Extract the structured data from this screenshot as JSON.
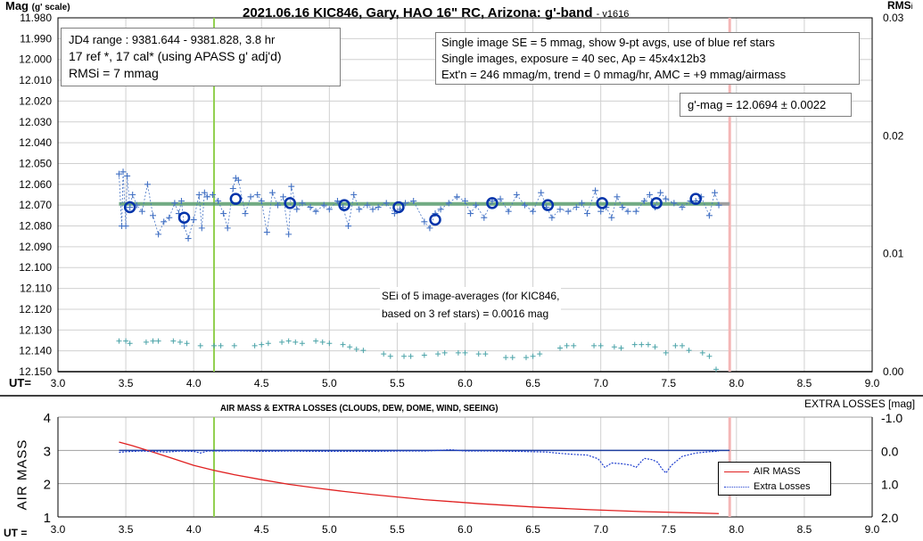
{
  "chart_data": [
    {
      "type": "scatter",
      "title": "2021.06.16 KIC846, Gary, HAO 16\" RC, Arizona: g'-band",
      "version": "- v1616",
      "ylabel": "Mag",
      "ylabel_sub": "(g' scale)",
      "y2label": "RMS",
      "y2label_sub": "i",
      "xlabel": "UT=",
      "xlim": [
        3.0,
        9.0
      ],
      "ylim": [
        12.15,
        11.98
      ],
      "y2lim": [
        0.0,
        0.03
      ],
      "xticks": [
        "3.0",
        "3.5",
        "4.0",
        "4.5",
        "5.0",
        "5.5",
        "6.0",
        "6.5",
        "7.0",
        "7.5",
        "8.0",
        "8.5",
        "9.0"
      ],
      "yticks": [
        "11.980",
        "11.990",
        "12.000",
        "12.010",
        "12.020",
        "12.030",
        "12.040",
        "12.050",
        "12.060",
        "12.070",
        "12.080",
        "12.090",
        "12.100",
        "12.110",
        "12.120",
        "12.130",
        "12.140",
        "12.150"
      ],
      "y2ticks": [
        "0.00",
        "0.01",
        "0.02",
        "0.03"
      ],
      "grid": true,
      "annotations": {
        "box1": [
          "JD4 range : 9381.644 - 9381.828,  3.8  hr",
          "17 ref *, 17 cal* (using APASS g' adj'd)",
          "RMSi = 7 mmag"
        ],
        "box2": [
          "Single image SE = 5 mmag, show  9-pt avgs, use of blue ref stars",
          "Single images, exposure = 40 sec, Ap = 45x4x12b3",
          "Ext'n = 246 mmag/m, trend =  0 mmag/hr, AMC = +9 mmag/airmass"
        ],
        "box3": "g'-mag = 12.0694 ± 0.0022",
        "box4": [
          "SEi of 5 image-averages (for KIC846,",
          "based on 3 ref stars) = 0.0016 mag"
        ]
      },
      "fit_mag": 12.0694,
      "vlines": {
        "green": 4.15,
        "pink": 7.95
      },
      "colors": {
        "points": "#4472c4",
        "avg": "#0033aa",
        "fit": "#5a9e6f",
        "rms": "#4aa3a8",
        "green": "#92d050",
        "pink": "#f4b6b6"
      },
      "series": [
        {
          "name": "Single images",
          "x": [
            3.45,
            3.47,
            3.48,
            3.5,
            3.51,
            3.53,
            3.55,
            3.58,
            3.62,
            3.66,
            3.7,
            3.74,
            3.78,
            3.82,
            3.86,
            3.89,
            3.91,
            3.93,
            3.96,
            4.0,
            4.04,
            4.06,
            4.08,
            4.1,
            4.14,
            4.18,
            4.22,
            4.25,
            4.29,
            4.31,
            4.33,
            4.38,
            4.42,
            4.47,
            4.5,
            4.54,
            4.58,
            4.62,
            4.66,
            4.7,
            4.72,
            4.76,
            4.8,
            4.86,
            4.9,
            4.96,
            5.0,
            5.06,
            5.1,
            5.14,
            5.18,
            5.22,
            5.28,
            5.32,
            5.36,
            5.42,
            5.48,
            5.52,
            5.56,
            5.62,
            5.7,
            5.74,
            5.78,
            5.82,
            5.88,
            5.94,
            6.0,
            6.04,
            6.08,
            6.14,
            6.2,
            6.26,
            6.32,
            6.38,
            6.44,
            6.5,
            6.56,
            6.6,
            6.64,
            6.7,
            6.76,
            6.82,
            6.86,
            6.9,
            6.96,
            7.0,
            7.04,
            7.08,
            7.12,
            7.16,
            7.2,
            7.26,
            7.32,
            7.36,
            7.4,
            7.44,
            7.48,
            7.54,
            7.6,
            7.66,
            7.7,
            7.74,
            7.8,
            7.84,
            7.87
          ],
          "y": [
            12.055,
            12.08,
            12.054,
            12.08,
            12.056,
            12.071,
            12.065,
            12.07,
            12.073,
            12.06,
            12.075,
            12.084,
            12.078,
            12.076,
            12.069,
            12.074,
            12.068,
            12.08,
            12.086,
            12.077,
            12.065,
            12.081,
            12.064,
            12.066,
            12.065,
            12.068,
            12.074,
            12.081,
            12.062,
            12.057,
            12.058,
            12.074,
            12.066,
            12.065,
            12.068,
            12.083,
            12.064,
            12.07,
            12.066,
            12.084,
            12.061,
            12.072,
            12.069,
            12.071,
            12.073,
            12.07,
            12.072,
            12.068,
            12.071,
            12.08,
            12.065,
            12.072,
            12.07,
            12.072,
            12.071,
            12.069,
            12.074,
            12.072,
            12.069,
            12.068,
            12.078,
            12.081,
            12.074,
            12.072,
            12.069,
            12.066,
            12.068,
            12.074,
            12.07,
            12.076,
            12.068,
            12.067,
            12.073,
            12.065,
            12.07,
            12.073,
            12.064,
            12.071,
            12.076,
            12.072,
            12.073,
            12.071,
            12.069,
            12.074,
            12.063,
            12.073,
            12.071,
            12.076,
            12.066,
            12.071,
            12.073,
            12.073,
            12.068,
            12.065,
            12.071,
            12.064,
            12.067,
            12.069,
            12.071,
            12.068,
            12.068,
            12.066,
            12.075,
            12.064,
            12.07
          ]
        },
        {
          "name": "9-pt averages",
          "x": [
            3.53,
            3.93,
            4.31,
            4.71,
            5.11,
            5.51,
            5.78,
            6.2,
            6.61,
            7.01,
            7.41,
            7.7
          ],
          "y": [
            12.071,
            12.076,
            12.067,
            12.069,
            12.07,
            12.071,
            12.077,
            12.069,
            12.07,
            12.069,
            12.069,
            12.067
          ]
        },
        {
          "name": "RMSi",
          "x": [
            3.45,
            3.5,
            3.53,
            3.65,
            3.7,
            3.74,
            3.85,
            3.9,
            3.95,
            4.05,
            4.15,
            4.2,
            4.3,
            4.45,
            4.5,
            4.55,
            4.65,
            4.7,
            4.75,
            4.8,
            4.9,
            4.95,
            5.0,
            5.1,
            5.15,
            5.2,
            5.25,
            5.4,
            5.45,
            5.55,
            5.6,
            5.7,
            5.8,
            5.85,
            5.95,
            6.0,
            6.1,
            6.15,
            6.3,
            6.35,
            6.45,
            6.5,
            6.55,
            6.7,
            6.75,
            6.8,
            6.95,
            7.0,
            7.1,
            7.15,
            7.25,
            7.3,
            7.35,
            7.4,
            7.48,
            7.55,
            7.6,
            7.65,
            7.75,
            7.8,
            7.85
          ],
          "y": [
            0.0026,
            0.0026,
            0.0024,
            0.0025,
            0.0026,
            0.0026,
            0.0026,
            0.0025,
            0.0024,
            0.0022,
            0.0022,
            0.0022,
            0.0022,
            0.0022,
            0.0023,
            0.0024,
            0.0025,
            0.0026,
            0.0025,
            0.0024,
            0.0026,
            0.0025,
            0.0024,
            0.0023,
            0.0021,
            0.0019,
            0.0018,
            0.0015,
            0.0013,
            0.0013,
            0.0013,
            0.0014,
            0.0015,
            0.0016,
            0.0016,
            0.0016,
            0.0015,
            0.0015,
            0.0012,
            0.0012,
            0.0012,
            0.0013,
            0.0015,
            0.002,
            0.0022,
            0.0022,
            0.0022,
            0.0022,
            0.0021,
            0.002,
            0.0023,
            0.0023,
            0.0023,
            0.0021,
            0.0016,
            0.0022,
            0.0022,
            0.0018,
            0.0016,
            0.0013,
            0.0002
          ]
        }
      ]
    },
    {
      "type": "line",
      "title": "AIR MASS & EXTRA LOSSES (CLOUDS, DEW, DOME, WIND, SEEING)",
      "ylabel": "AIR MASS",
      "y2label": "EXTRA LOSSES [mag]",
      "xlabel": "UT =",
      "xlim": [
        3.0,
        9.0
      ],
      "ylim": [
        1,
        4
      ],
      "y2lim": [
        -1.0,
        2.0
      ],
      "xticks": [
        "3.0",
        "3.5",
        "4.0",
        "4.5",
        "5.0",
        "5.5",
        "6.0",
        "6.5",
        "7.0",
        "7.5",
        "8.0",
        "8.5",
        "9.0"
      ],
      "yticks": [
        "1",
        "2",
        "3",
        "4"
      ],
      "y2ticks": [
        "-1.0",
        "0.0",
        "1.0",
        "2.0"
      ],
      "legend": [
        "AIR MASS",
        "Extra Losses"
      ],
      "legend_position": "right",
      "series": [
        {
          "name": "AIR MASS",
          "color": "#e02020",
          "x": [
            3.45,
            3.55,
            3.7,
            3.85,
            4.0,
            4.15,
            4.3,
            4.5,
            4.7,
            4.9,
            5.1,
            5.3,
            5.5,
            5.7,
            5.9,
            6.1,
            6.3,
            6.5,
            6.7,
            6.9,
            7.1,
            7.3,
            7.5,
            7.7,
            7.87
          ],
          "y": [
            3.25,
            3.14,
            2.95,
            2.75,
            2.55,
            2.4,
            2.27,
            2.12,
            1.98,
            1.87,
            1.77,
            1.68,
            1.6,
            1.52,
            1.46,
            1.4,
            1.35,
            1.3,
            1.26,
            1.22,
            1.19,
            1.16,
            1.14,
            1.12,
            1.1
          ]
        },
        {
          "name": "Extra Losses",
          "color": "#1f3fcf",
          "x": [
            3.45,
            3.5,
            3.6,
            3.7,
            3.8,
            3.9,
            4.0,
            4.05,
            4.1,
            4.2,
            4.3,
            4.5,
            4.7,
            4.9,
            5.1,
            5.3,
            5.5,
            5.7,
            5.9,
            6.0,
            6.2,
            6.4,
            6.6,
            6.7,
            6.8,
            6.9,
            6.98,
            7.03,
            7.08,
            7.15,
            7.22,
            7.26,
            7.32,
            7.38,
            7.42,
            7.45,
            7.48,
            7.52,
            7.6,
            7.7,
            7.8,
            7.87
          ],
          "y": [
            0.06,
            0.04,
            0.02,
            0.03,
            0.05,
            0.02,
            0.03,
            0.08,
            0.02,
            0.02,
            0.01,
            0.03,
            0.02,
            0.03,
            0.03,
            0.03,
            0.02,
            0.02,
            -0.02,
            0.02,
            0.02,
            0.03,
            0.05,
            0.09,
            0.12,
            0.14,
            0.25,
            0.51,
            0.38,
            0.4,
            0.44,
            0.51,
            0.24,
            0.28,
            0.36,
            0.55,
            0.68,
            0.45,
            0.18,
            0.08,
            0.04,
            0.02
          ]
        }
      ]
    }
  ]
}
